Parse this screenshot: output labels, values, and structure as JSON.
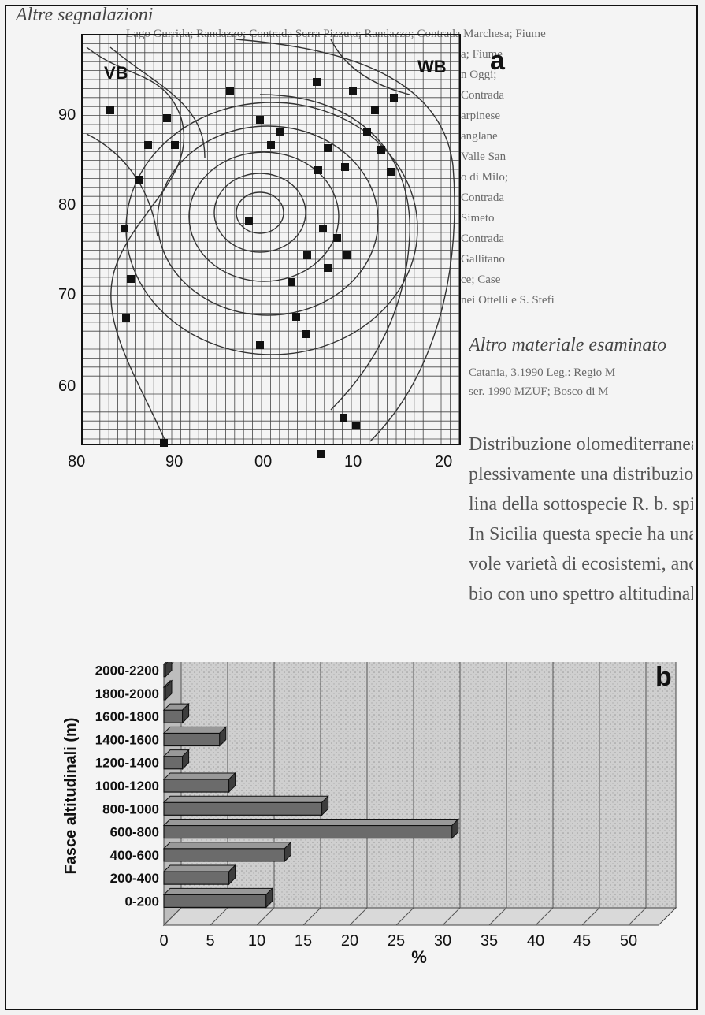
{
  "panel_a": {
    "label": "a",
    "corner_left": "VB",
    "corner_right": "WB",
    "y_ticks": [
      "90",
      "80",
      "70",
      "60"
    ],
    "x_ticks": [
      "80",
      "90",
      "00",
      "10",
      "20"
    ]
  },
  "panel_b": {
    "label": "b"
  },
  "text": {
    "heading_top": "Altre segnalazioni",
    "heading_mid": "Altro materiale esaminato",
    "distribution_lead": "Distribuzione olomediterranea"
  },
  "chart_data": {
    "type": "bar",
    "orientation": "horizontal",
    "categories": [
      "0-200",
      "200-400",
      "400-600",
      "600-800",
      "800-1000",
      "1000-1200",
      "1200-1400",
      "1400-1600",
      "1600-1800",
      "1800-2000",
      "2000-2200"
    ],
    "values": [
      11,
      7,
      13,
      31,
      17,
      7,
      2,
      6,
      2,
      0,
      0
    ],
    "xlabel": "%",
    "ylabel": "Fasce altitudinali (m)",
    "xticks": [
      "0",
      "5",
      "10",
      "15",
      "20",
      "25",
      "30",
      "35",
      "40",
      "45",
      "50"
    ],
    "xlim": [
      0,
      50
    ],
    "grid": true
  }
}
